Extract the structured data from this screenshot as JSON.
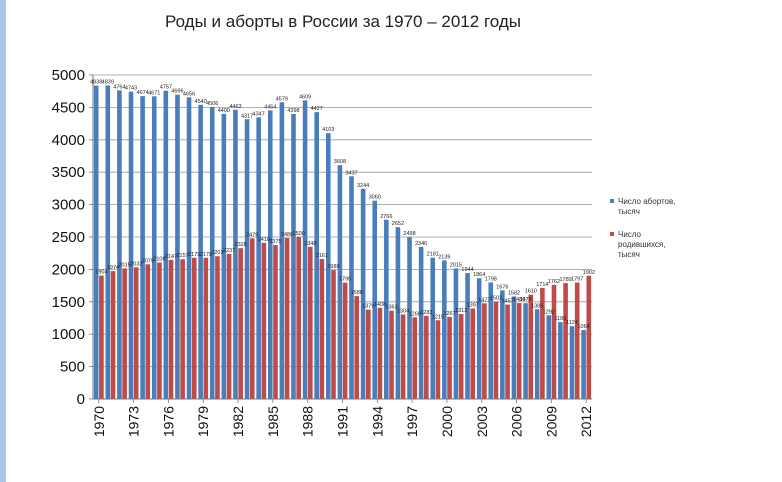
{
  "chart_data": {
    "type": "bar",
    "title": "Роды и аборты в России за 1970 – 2012 годы",
    "ylim": [
      0,
      5000
    ],
    "yticks": [
      0,
      500,
      1000,
      1500,
      2000,
      2500,
      3000,
      3500,
      4000,
      4500,
      5000
    ],
    "grid": true,
    "legend": "right",
    "categories": [
      "1970",
      "1971",
      "1972",
      "1973",
      "1974",
      "1975",
      "1976",
      "1977",
      "1978",
      "1979",
      "1980",
      "1981",
      "1982",
      "1983",
      "1984",
      "1985",
      "1986",
      "1987",
      "1988",
      "1989",
      "1990",
      "1991",
      "1992",
      "1993",
      "1994",
      "1995",
      "1996",
      "1997",
      "1998",
      "1999",
      "2000",
      "2001",
      "2002",
      "2003",
      "2004",
      "2005",
      "2006",
      "2007",
      "2008",
      "2009",
      "2010",
      "2011",
      "2012"
    ],
    "xtick_labels": [
      "1970",
      "1973",
      "1976",
      "1979",
      "1982",
      "1985",
      "1988",
      "1991",
      "1994",
      "1997",
      "2000",
      "2003",
      "2006",
      "2009",
      "2012"
    ],
    "series": [
      {
        "name": "Число абортов, тысяч",
        "color": "#4a7ebb",
        "values": [
          4838,
          4839,
          4764,
          4743,
          4674,
          4671,
          4757,
          4696,
          4656,
          4540,
          4506,
          4400,
          4463,
          4317,
          4347,
          4454,
          4579,
          4398,
          4609,
          4427,
          4103,
          3608,
          3437,
          3244,
          3060,
          2766,
          2652,
          2498,
          2346,
          2181,
          2139,
          2015,
          1944,
          1864,
          1798,
          1676,
          1582,
          1479,
          1385,
          1292,
          1186,
          1124,
          1064
        ],
        "labels": [
          "4838",
          "4839",
          "4764",
          "4743",
          "4674",
          "4671",
          "4757",
          "4696",
          "4656",
          "4540",
          "4506",
          "4400",
          "4463",
          "4317",
          "4347",
          "4454",
          "4579",
          "4398",
          "4609",
          "4427",
          "4103",
          "3608",
          "3437",
          "3244",
          "3060",
          "2766",
          "2652",
          "2498",
          "2346",
          "2181",
          "2139",
          "2015",
          "1944",
          "1864",
          "1798",
          "1676",
          "1582",
          "1479",
          "1385",
          "1292",
          "1186",
          "1124",
          "1064"
        ]
      },
      {
        "name": "Число родившихся, тысяч",
        "color": "#be4b48",
        "values": [
          1904,
          1974,
          2015,
          2033,
          2079,
          2106,
          2147,
          2157,
          2179,
          2179,
          2203,
          2237,
          2328,
          2479,
          2410,
          2375,
          2486,
          2500,
          2348,
          2161,
          1989,
          1795,
          1588,
          1379,
          1408,
          1363,
          1304,
          1260,
          1283,
          1215,
          1267,
          1312,
          1397,
          1477,
          1502,
          1457,
          1480,
          1610,
          1714,
          1762,
          1789,
          1797,
          1902
        ],
        "labels": [
          "1904",
          "1974",
          "2015",
          "2033",
          "2079",
          "2106",
          "2147",
          "2157",
          "2179",
          "2179",
          "2203",
          "2237",
          "2328",
          "2479",
          "2410",
          "2375",
          "2486",
          "2500",
          "2348",
          "2161",
          "1989",
          "1795",
          "1588",
          "1379",
          "1408",
          "1363",
          "1304",
          "1260",
          "1283",
          "1215",
          "1267",
          "1312",
          "1397",
          "1477",
          "1502",
          "1457",
          "1480",
          "1610",
          "1714",
          "1762",
          "1789",
          "1797",
          "1902"
        ]
      }
    ],
    "legend_labels": [
      [
        "Число абортов,",
        "тысяч"
      ],
      [
        "Число",
        "родившихся,",
        "тысяч"
      ]
    ]
  }
}
